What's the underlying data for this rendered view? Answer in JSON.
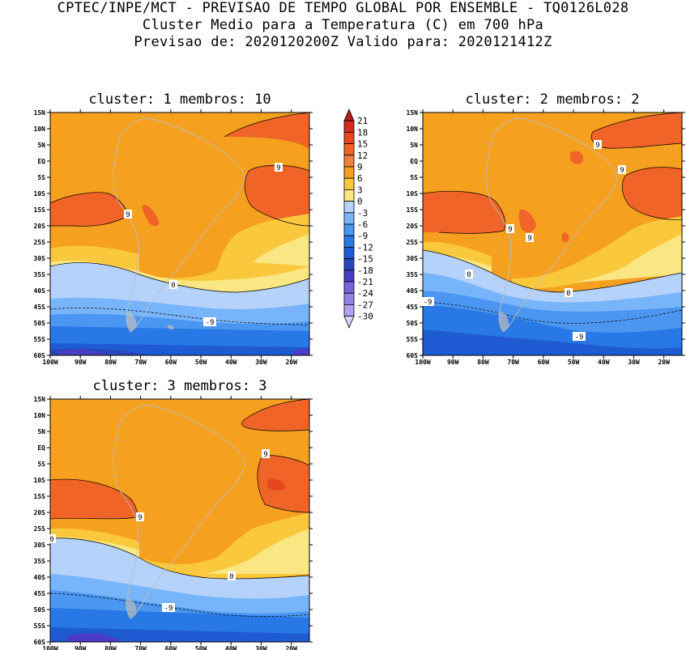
{
  "header": {
    "line1": "CPTEC/INPE/MCT - PREVISAO DE TEMPO GLOBAL POR ENSEMBLE - TQ0126L028",
    "line2": "Cluster Medio para a Temperatura (C) em 700 hPa",
    "line3": "Previsao de: 2020120200Z   Valido para: 2020121412Z"
  },
  "chart_data": {
    "type": "heatmap",
    "variable": "Temperatura (C) em 700 hPa",
    "lat_ticks": [
      "15N",
      "10N",
      "5N",
      "EQ",
      "5S",
      "10S",
      "15S",
      "20S",
      "25S",
      "30S",
      "35S",
      "40S",
      "45S",
      "50S",
      "55S",
      "60S"
    ],
    "lon_ticks": [
      "100W",
      "90W",
      "80W",
      "70W",
      "60W",
      "50W",
      "40W",
      "30W",
      "20W"
    ],
    "lat_range": [
      -60,
      15
    ],
    "lon_range": [
      -100,
      -14
    ],
    "colorbar": {
      "levels": [
        "21",
        "18",
        "15",
        "12",
        "9",
        "6",
        "3",
        "0",
        "-3",
        "-6",
        "-9",
        "-12",
        "-15",
        "-18",
        "-21",
        "-24",
        "-27",
        "-30"
      ],
      "colors": [
        "#b41e1e",
        "#d22a1e",
        "#e8461e",
        "#f06428",
        "#f5823c",
        "#f5a01e",
        "#fac83c",
        "#fae682",
        "#b4d2fa",
        "#78b4fa",
        "#4b96f0",
        "#2878e6",
        "#1e5ad2",
        "#2846be",
        "#4b3cc8",
        "#7864dc",
        "#9682e6",
        "#b4a0f0",
        "#dcd2fa"
      ]
    },
    "panels": [
      {
        "title": "cluster: 1   membros: 10",
        "contour_labels": [
          "9",
          "9",
          "0",
          "-9"
        ]
      },
      {
        "title": "cluster: 2   membros: 2",
        "contour_labels": [
          "9",
          "9",
          "9",
          "9",
          "0",
          "0",
          "-9",
          "-9"
        ]
      },
      {
        "title": "cluster: 3   membros: 3",
        "contour_labels": [
          "9",
          "9",
          "0",
          "0",
          "-9"
        ]
      }
    ]
  }
}
